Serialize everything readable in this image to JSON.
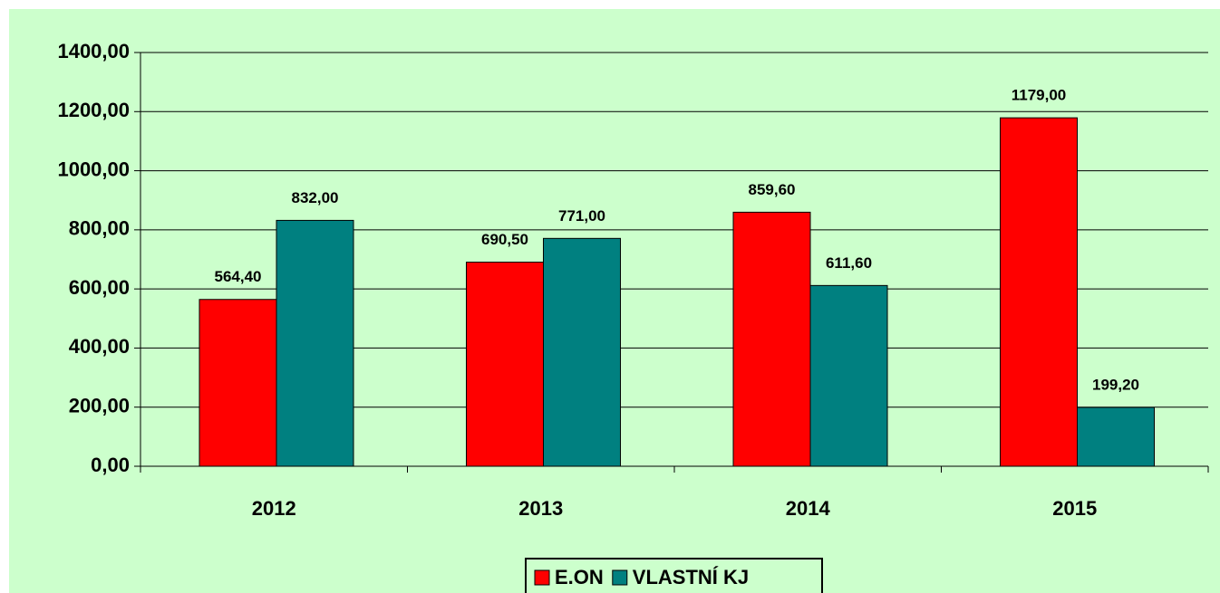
{
  "chart_data": {
    "type": "bar",
    "categories": [
      "2012",
      "2013",
      "2014",
      "2015"
    ],
    "series": [
      {
        "name": "E.ON",
        "color": "#ff0000",
        "values": [
          564.4,
          690.5,
          859.6,
          1179
        ],
        "value_labels": [
          "564,40",
          "690,50",
          "859,60",
          "1179,00"
        ]
      },
      {
        "name": "VLASTNÍ KJ",
        "color": "#008080",
        "values": [
          832,
          771,
          611.6,
          199.2
        ],
        "value_labels": [
          "832,00",
          "771,00",
          "611,60",
          "199,20"
        ]
      }
    ],
    "ylim": [
      0,
      1400
    ],
    "yticks": [
      {
        "value": 0,
        "label": "0,00"
      },
      {
        "value": 200,
        "label": "200,00"
      },
      {
        "value": 400,
        "label": "400,00"
      },
      {
        "value": 600,
        "label": "600,00"
      },
      {
        "value": 800,
        "label": "800,00"
      },
      {
        "value": 1000,
        "label": "1000,00"
      },
      {
        "value": 1200,
        "label": "1200,00"
      },
      {
        "value": 1400,
        "label": "1400,00"
      }
    ],
    "grid": true,
    "legend": "bottom"
  }
}
